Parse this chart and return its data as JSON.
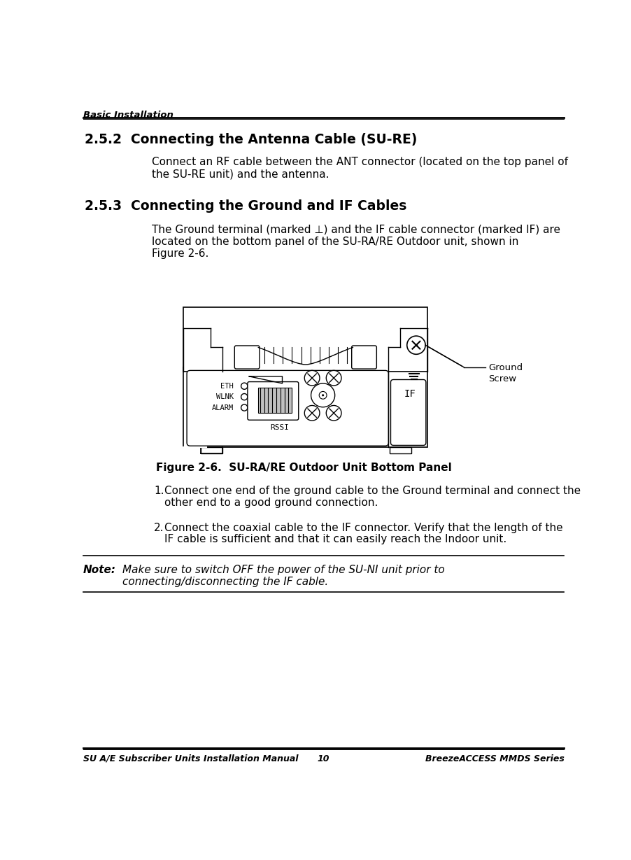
{
  "bg_color": "#ffffff",
  "header_text": "Basic Installation",
  "footer_left": "SU A/E Subscriber Units Installation Manual",
  "footer_center": "10",
  "footer_right": "BreezeACCESS MMDS Series",
  "section_252_title": "2.5.2  Connecting the Antenna Cable (SU-RE)",
  "section_252_body_line1": "Connect an RF cable between the ANT connector (located on the top panel of",
  "section_252_body_line2": "the SU-RE unit) and the antenna.",
  "section_253_title": "2.5.3  Connecting the Ground and IF Cables",
  "section_253_body_line1": "The Ground terminal (marked ⊥) and the IF cable connector (marked IF) are",
  "section_253_body_line2": "located on the bottom panel of the SU-RA/RE Outdoor unit, shown in",
  "section_253_body_line3": "Figure 2-6.",
  "figure_caption": "Figure 2-6.  SU-RA/RE Outdoor Unit Bottom Panel",
  "step1_num": "1.",
  "step1_line1": "Connect one end of the ground cable to the Ground terminal and connect the",
  "step1_line2": "other end to a good ground connection.",
  "step2_num": "2.",
  "step2_line1": "Connect the coaxial cable to the IF connector. Verify that the length of the",
  "step2_line2": "IF cable is sufficient and that it can easily reach the Indoor unit.",
  "note_label": "Note:",
  "note_line1": "Make sure to switch OFF the power of the SU-NI unit prior to",
  "note_line2": "connecting/disconnecting the IF cable.",
  "ground_screw_label": "Ground\nScrew",
  "eth_labels": [
    "ETH",
    "WLNK",
    "ALARM"
  ],
  "rssi_label": "RSSI",
  "if_label": "IF"
}
